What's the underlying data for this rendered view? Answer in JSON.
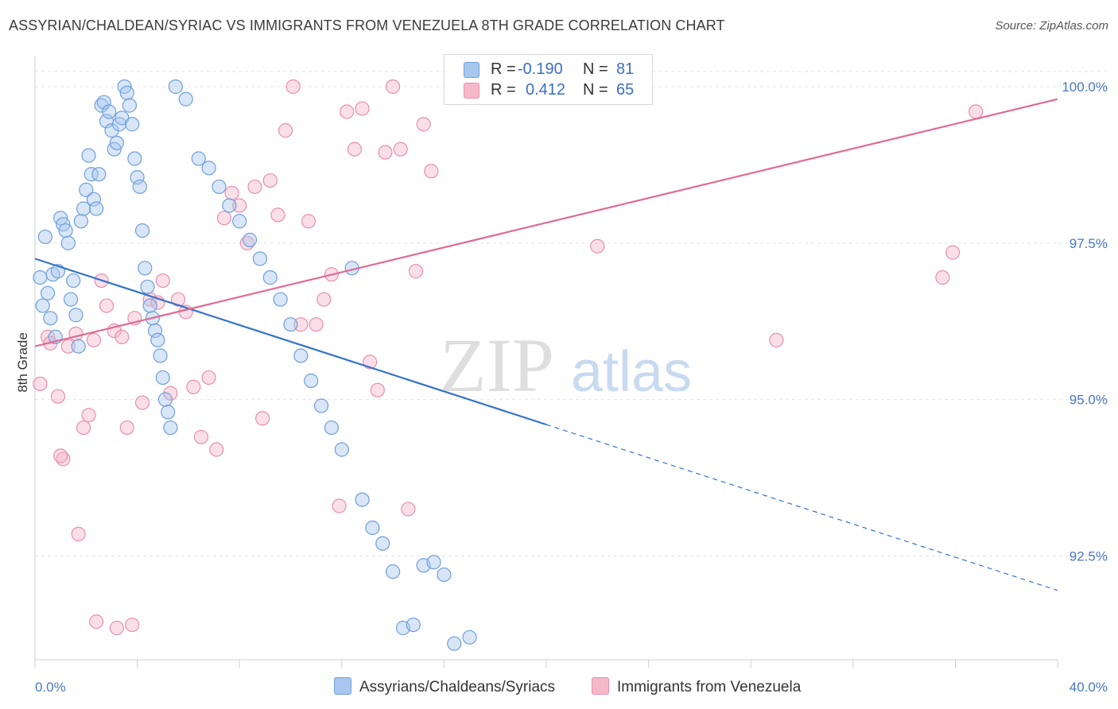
{
  "title": "ASSYRIAN/CHALDEAN/SYRIAC VS IMMIGRANTS FROM VENEZUELA 8TH GRADE CORRELATION CHART",
  "source": "Source: ZipAtlas.com",
  "watermark": {
    "zip": "ZIP",
    "atlas": "atlas"
  },
  "legend": {
    "rows": [
      {
        "r_label": "R =",
        "r_value": "-0.190",
        "n_label": "N =",
        "n_value": "81"
      },
      {
        "r_label": "R =",
        "r_value": "0.412",
        "n_label": "N =",
        "n_value": "65"
      }
    ]
  },
  "bottom_legend": [
    "Assyrians/Chaldeans/Syriacs",
    "Immigrants from Venezuela"
  ],
  "colors": {
    "blue_fill": "#a9c7ee",
    "blue_stroke": "#6f9fdc",
    "blue_line": "#3472cc",
    "pink_fill": "#f5b8cb",
    "pink_stroke": "#e98fab",
    "pink_line": "#e06a95",
    "tick_text": "#4a78c2",
    "grid": "#e2e2e2"
  },
  "chart_data": {
    "type": "scatter",
    "title": "ASSYRIAN/CHALDEAN/SYRIAC VS IMMIGRANTS FROM VENEZUELA 8TH GRADE CORRELATION CHART",
    "xlabel": "",
    "ylabel": "8th Grade",
    "xlim": [
      0,
      40
    ],
    "ylim": [
      90.8,
      100.4
    ],
    "x_tick_labels": [
      "0.0%",
      "40.0%"
    ],
    "y_ticks": [
      92.5,
      95.0,
      97.5,
      100.0
    ],
    "y_tick_labels": [
      "92.5%",
      "95.0%",
      "97.5%",
      "100.0%"
    ],
    "series": [
      {
        "name": "Assyrians/Chaldeans/Syriacs",
        "R": -0.19,
        "N": 81,
        "trend": {
          "x_start": 0,
          "y_start": 97.25,
          "x_solid_end": 20,
          "y_solid_end": 94.6,
          "x_end": 40,
          "y_end": 91.95
        },
        "points": [
          [
            0.2,
            96.95
          ],
          [
            0.3,
            96.5
          ],
          [
            0.4,
            97.6
          ],
          [
            0.5,
            96.7
          ],
          [
            0.6,
            96.3
          ],
          [
            0.7,
            97.0
          ],
          [
            0.8,
            96.0
          ],
          [
            0.9,
            97.05
          ],
          [
            1.0,
            97.9
          ],
          [
            1.1,
            97.8
          ],
          [
            1.2,
            97.7
          ],
          [
            1.3,
            97.5
          ],
          [
            1.4,
            96.6
          ],
          [
            1.5,
            96.9
          ],
          [
            1.6,
            96.35
          ],
          [
            1.7,
            95.85
          ],
          [
            1.8,
            97.85
          ],
          [
            1.9,
            98.05
          ],
          [
            2.0,
            98.35
          ],
          [
            2.1,
            98.9
          ],
          [
            2.2,
            98.6
          ],
          [
            2.3,
            98.2
          ],
          [
            2.4,
            98.05
          ],
          [
            2.5,
            98.6
          ],
          [
            2.6,
            99.7
          ],
          [
            2.7,
            99.75
          ],
          [
            2.8,
            99.45
          ],
          [
            2.9,
            99.6
          ],
          [
            3.0,
            99.3
          ],
          [
            3.1,
            99.0
          ],
          [
            3.2,
            99.1
          ],
          [
            3.3,
            99.4
          ],
          [
            3.4,
            99.5
          ],
          [
            3.5,
            100.0
          ],
          [
            3.6,
            99.9
          ],
          [
            3.7,
            99.7
          ],
          [
            3.8,
            99.4
          ],
          [
            3.9,
            98.85
          ],
          [
            4.0,
            98.55
          ],
          [
            4.1,
            98.4
          ],
          [
            4.2,
            97.7
          ],
          [
            4.3,
            97.1
          ],
          [
            4.4,
            96.8
          ],
          [
            4.5,
            96.5
          ],
          [
            4.6,
            96.3
          ],
          [
            4.7,
            96.1
          ],
          [
            4.8,
            95.95
          ],
          [
            4.9,
            95.7
          ],
          [
            5.0,
            95.35
          ],
          [
            5.1,
            95.0
          ],
          [
            5.2,
            94.8
          ],
          [
            5.3,
            94.55
          ],
          [
            5.5,
            100.0
          ],
          [
            5.9,
            99.8
          ],
          [
            6.4,
            98.85
          ],
          [
            6.8,
            98.7
          ],
          [
            7.2,
            98.4
          ],
          [
            7.6,
            98.1
          ],
          [
            8.0,
            97.85
          ],
          [
            8.4,
            97.55
          ],
          [
            8.8,
            97.25
          ],
          [
            9.2,
            96.95
          ],
          [
            9.6,
            96.6
          ],
          [
            10.0,
            96.2
          ],
          [
            10.4,
            95.7
          ],
          [
            10.8,
            95.3
          ],
          [
            11.2,
            94.9
          ],
          [
            11.6,
            94.55
          ],
          [
            12.0,
            94.2
          ],
          [
            12.4,
            97.1
          ],
          [
            12.8,
            93.4
          ],
          [
            13.2,
            92.95
          ],
          [
            13.6,
            92.7
          ],
          [
            14.0,
            92.25
          ],
          [
            14.4,
            91.35
          ],
          [
            14.8,
            91.4
          ],
          [
            15.2,
            92.35
          ],
          [
            15.6,
            92.4
          ],
          [
            16.0,
            92.2
          ],
          [
            16.4,
            91.1
          ],
          [
            17.0,
            91.2
          ]
        ]
      },
      {
        "name": "Immigrants from Venezuela",
        "R": 0.412,
        "N": 65,
        "trend": {
          "x_start": 0,
          "y_start": 95.85,
          "x_end": 40,
          "y_end": 99.8
        },
        "points": [
          [
            0.2,
            95.25
          ],
          [
            0.5,
            96.0
          ],
          [
            0.9,
            95.05
          ],
          [
            1.1,
            94.05
          ],
          [
            1.3,
            95.85
          ],
          [
            1.6,
            96.05
          ],
          [
            1.9,
            94.55
          ],
          [
            2.1,
            94.75
          ],
          [
            2.3,
            95.95
          ],
          [
            2.6,
            96.9
          ],
          [
            2.8,
            96.5
          ],
          [
            3.1,
            96.1
          ],
          [
            3.4,
            96.0
          ],
          [
            3.6,
            94.55
          ],
          [
            3.9,
            96.3
          ],
          [
            4.2,
            94.95
          ],
          [
            4.5,
            96.6
          ],
          [
            4.8,
            96.55
          ],
          [
            5.0,
            96.9
          ],
          [
            5.3,
            95.1
          ],
          [
            5.6,
            96.6
          ],
          [
            5.9,
            96.4
          ],
          [
            6.2,
            95.2
          ],
          [
            6.5,
            94.4
          ],
          [
            6.8,
            95.35
          ],
          [
            7.1,
            94.2
          ],
          [
            7.4,
            97.9
          ],
          [
            7.7,
            98.3
          ],
          [
            8.0,
            98.1
          ],
          [
            8.3,
            97.5
          ],
          [
            8.6,
            98.4
          ],
          [
            8.9,
            94.7
          ],
          [
            9.2,
            98.5
          ],
          [
            9.5,
            97.95
          ],
          [
            9.8,
            99.3
          ],
          [
            10.1,
            100.0
          ],
          [
            10.4,
            96.2
          ],
          [
            10.7,
            97.85
          ],
          [
            11.0,
            96.2
          ],
          [
            11.3,
            96.6
          ],
          [
            11.6,
            97.0
          ],
          [
            11.9,
            93.3
          ],
          [
            12.2,
            99.6
          ],
          [
            12.5,
            99.0
          ],
          [
            12.8,
            99.65
          ],
          [
            13.1,
            95.6
          ],
          [
            13.4,
            95.15
          ],
          [
            13.7,
            98.95
          ],
          [
            14.0,
            100.0
          ],
          [
            14.3,
            99.0
          ],
          [
            14.6,
            93.25
          ],
          [
            14.9,
            97.05
          ],
          [
            15.2,
            99.4
          ],
          [
            15.5,
            98.65
          ],
          [
            1.0,
            94.1
          ],
          [
            1.7,
            92.85
          ],
          [
            2.4,
            91.45
          ],
          [
            3.2,
            91.35
          ],
          [
            3.8,
            91.4
          ],
          [
            22.0,
            97.45
          ],
          [
            29.0,
            95.95
          ],
          [
            35.5,
            96.95
          ],
          [
            35.9,
            97.35
          ],
          [
            36.8,
            99.6
          ],
          [
            0.6,
            95.9
          ]
        ]
      }
    ]
  }
}
